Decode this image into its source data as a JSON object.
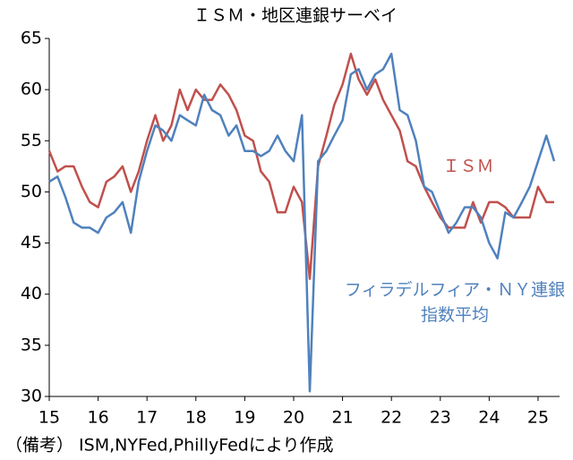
{
  "chart_data": {
    "type": "line",
    "title": "ＩＳＭ・地区連銀サーベイ",
    "note": "（備考） ISM,NYFed,PhillyFedにより作成",
    "x": [
      15,
      15.17,
      15.33,
      15.5,
      15.67,
      15.83,
      16,
      16.17,
      16.33,
      16.5,
      16.67,
      16.83,
      17,
      17.17,
      17.33,
      17.5,
      17.67,
      17.83,
      18,
      18.17,
      18.33,
      18.5,
      18.67,
      18.83,
      19,
      19.17,
      19.33,
      19.5,
      19.67,
      19.83,
      20,
      20.17,
      20.33,
      20.5,
      20.67,
      20.83,
      21,
      21.17,
      21.33,
      21.5,
      21.67,
      21.83,
      22,
      22.17,
      22.33,
      22.5,
      22.67,
      22.83,
      23,
      23.17,
      23.33,
      23.5,
      23.67,
      23.83,
      24,
      24.17,
      24.33,
      24.5,
      24.67,
      24.83,
      25,
      25.17,
      25.33
    ],
    "series": [
      {
        "name": "ＩＳＭ",
        "color": "#c0504d",
        "values": [
          54,
          52,
          52.5,
          52.5,
          50.5,
          49,
          48.5,
          51,
          51.5,
          52.5,
          50,
          52,
          55,
          57.5,
          55,
          56.5,
          60,
          58,
          60,
          59,
          59,
          60.5,
          59.5,
          58,
          55.5,
          55,
          52,
          51,
          48,
          48,
          50.5,
          49,
          41.5,
          52.5,
          55.5,
          58.5,
          60.5,
          63.5,
          61,
          59.5,
          61,
          59,
          57.5,
          56,
          53,
          52.5,
          50.5,
          49,
          47.5,
          46.5,
          46.5,
          46.5,
          49,
          47,
          49,
          49,
          48.5,
          47.5,
          47.5,
          47.5,
          50.5,
          49,
          49
        ]
      },
      {
        "name": "フィラデルフィア・ＮＹ連銀\n指数平均",
        "color": "#4f81bd",
        "values": [
          51,
          51.5,
          49.5,
          47,
          46.5,
          46.5,
          46,
          47.5,
          48,
          49,
          46,
          51,
          54,
          56.5,
          56,
          55,
          57.5,
          57,
          56.5,
          59.5,
          58,
          57.5,
          55.5,
          56.5,
          54,
          54,
          53.5,
          54,
          55.5,
          54,
          53,
          57.5,
          30.5,
          53,
          54,
          55.5,
          57,
          61.5,
          62,
          60,
          61.5,
          62,
          63.5,
          58,
          57.5,
          55,
          50.5,
          50,
          48,
          46,
          47,
          48.5,
          48.5,
          47.5,
          45,
          43.5,
          48,
          47.5,
          49,
          50.5,
          53,
          55.5,
          53
        ]
      }
    ],
    "xlim": [
      15,
      25.44
    ],
    "xticks": [
      15,
      16,
      17,
      18,
      19,
      20,
      21,
      22,
      23,
      24,
      25
    ],
    "ylim": [
      30,
      65
    ],
    "yticks": [
      30,
      35,
      40,
      45,
      50,
      55,
      60,
      65
    ]
  }
}
